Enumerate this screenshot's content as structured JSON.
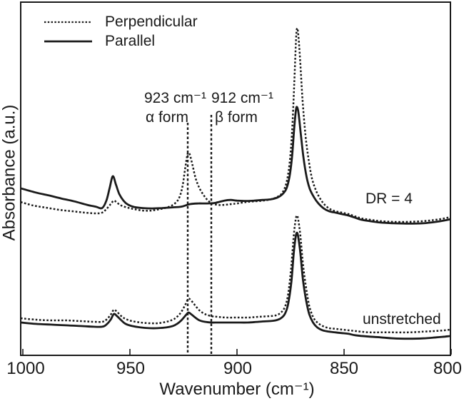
{
  "figure": {
    "background": "#ffffff",
    "line_color": "#1a1a1a"
  },
  "legend": {
    "items": [
      {
        "label": "Perpendicular",
        "style": "dotted"
      },
      {
        "label": "Parallel",
        "style": "solid"
      }
    ]
  },
  "annotations": {
    "alpha_peak_line1": "923 cm⁻¹",
    "alpha_peak_line2": "α form",
    "beta_peak_line1": "912 cm⁻¹",
    "beta_peak_line2": "β form",
    "top_group_label": "DR = 4",
    "bottom_group_label": "unstretched"
  },
  "chart_data": {
    "type": "line",
    "title": "",
    "xlabel": "Wavenumber (cm⁻¹)",
    "ylabel": "Absorbance (a.u.)",
    "xlim": [
      1000,
      800
    ],
    "x_reversed": true,
    "ylim": [
      0,
      1
    ],
    "x_ticks": [
      1000,
      950,
      900,
      850,
      800
    ],
    "grid": false,
    "legend_position": "top-left",
    "vlines": [
      {
        "x": 923,
        "label": "α form",
        "style": "dotted"
      },
      {
        "x": 912,
        "label": "β form",
        "style": "dotted"
      }
    ],
    "series": [
      {
        "name": "DR = 4 — Perpendicular",
        "group": "DR = 4",
        "orientation": "Perpendicular",
        "style": "dotted",
        "points": [
          [
            1001,
            0.434
          ],
          [
            995,
            0.424
          ],
          [
            989,
            0.418
          ],
          [
            983,
            0.412
          ],
          [
            977,
            0.408
          ],
          [
            971,
            0.404
          ],
          [
            966,
            0.402
          ],
          [
            963,
            0.404
          ],
          [
            961,
            0.414
          ],
          [
            959,
            0.428
          ],
          [
            957.5,
            0.438
          ],
          [
            956,
            0.432
          ],
          [
            954,
            0.424
          ],
          [
            951,
            0.418
          ],
          [
            948,
            0.414
          ],
          [
            944,
            0.41
          ],
          [
            940,
            0.41
          ],
          [
            936,
            0.414
          ],
          [
            932,
            0.42
          ],
          [
            929,
            0.43
          ],
          [
            927,
            0.446
          ],
          [
            925.5,
            0.477
          ],
          [
            924.3,
            0.525
          ],
          [
            923.3,
            0.564
          ],
          [
            922.7,
            0.574
          ],
          [
            922,
            0.568
          ],
          [
            920.7,
            0.537
          ],
          [
            919.3,
            0.501
          ],
          [
            917.5,
            0.473
          ],
          [
            915.5,
            0.453
          ],
          [
            913.5,
            0.438
          ],
          [
            911.5,
            0.43
          ],
          [
            909,
            0.426
          ],
          [
            906,
            0.426
          ],
          [
            903,
            0.428
          ],
          [
            900,
            0.43
          ],
          [
            896,
            0.434
          ],
          [
            892,
            0.436
          ],
          [
            888,
            0.438
          ],
          [
            884,
            0.442
          ],
          [
            881,
            0.449
          ],
          [
            879,
            0.459
          ],
          [
            877,
            0.487
          ],
          [
            875.5,
            0.541
          ],
          [
            874.3,
            0.632
          ],
          [
            873.3,
            0.764
          ],
          [
            872.5,
            0.885
          ],
          [
            872,
            0.925
          ],
          [
            871.4,
            0.909
          ],
          [
            870.5,
            0.834
          ],
          [
            869.4,
            0.723
          ],
          [
            868,
            0.622
          ],
          [
            866.5,
            0.552
          ],
          [
            865,
            0.501
          ],
          [
            863,
            0.465
          ],
          [
            861,
            0.442
          ],
          [
            859,
            0.426
          ],
          [
            856.5,
            0.414
          ],
          [
            854,
            0.408
          ],
          [
            851,
            0.404
          ],
          [
            848,
            0.4
          ],
          [
            845,
            0.394
          ],
          [
            842,
            0.388
          ],
          [
            838,
            0.384
          ],
          [
            833,
            0.38
          ],
          [
            827,
            0.378
          ],
          [
            820,
            0.378
          ],
          [
            813,
            0.38
          ],
          [
            807,
            0.384
          ],
          [
            803,
            0.388
          ],
          [
            800,
            0.392
          ]
        ]
      },
      {
        "name": "DR = 4 — Parallel",
        "group": "DR = 4",
        "orientation": "Parallel",
        "style": "solid",
        "points": [
          [
            1001,
            0.473
          ],
          [
            994,
            0.461
          ],
          [
            988,
            0.453
          ],
          [
            982,
            0.444
          ],
          [
            976,
            0.436
          ],
          [
            970,
            0.426
          ],
          [
            966,
            0.421
          ],
          [
            963,
            0.417
          ],
          [
            961,
            0.438
          ],
          [
            959.5,
            0.473
          ],
          [
            958,
            0.507
          ],
          [
            956.5,
            0.483
          ],
          [
            955,
            0.457
          ],
          [
            953,
            0.438
          ],
          [
            951,
            0.427
          ],
          [
            948,
            0.42
          ],
          [
            944,
            0.417
          ],
          [
            940,
            0.416
          ],
          [
            935,
            0.417
          ],
          [
            930,
            0.419
          ],
          [
            926,
            0.421
          ],
          [
            922,
            0.428
          ],
          [
            918,
            0.43
          ],
          [
            914,
            0.43
          ],
          [
            910,
            0.432
          ],
          [
            906,
            0.438
          ],
          [
            903,
            0.44
          ],
          [
            900,
            0.438
          ],
          [
            896,
            0.437
          ],
          [
            892,
            0.438
          ],
          [
            888,
            0.44
          ],
          [
            884,
            0.442
          ],
          [
            881,
            0.447
          ],
          [
            879,
            0.455
          ],
          [
            877,
            0.471
          ],
          [
            875.5,
            0.505
          ],
          [
            874.3,
            0.562
          ],
          [
            873.3,
            0.642
          ],
          [
            872.5,
            0.693
          ],
          [
            872,
            0.703
          ],
          [
            871.3,
            0.687
          ],
          [
            870.3,
            0.632
          ],
          [
            869,
            0.562
          ],
          [
            867.5,
            0.505
          ],
          [
            866,
            0.471
          ],
          [
            864,
            0.447
          ],
          [
            862,
            0.43
          ],
          [
            859.5,
            0.416
          ],
          [
            857,
            0.408
          ],
          [
            854,
            0.404
          ],
          [
            851,
            0.4
          ],
          [
            848,
            0.396
          ],
          [
            845,
            0.39
          ],
          [
            842,
            0.384
          ],
          [
            838,
            0.38
          ],
          [
            833,
            0.376
          ],
          [
            827,
            0.374
          ],
          [
            820,
            0.373
          ],
          [
            813,
            0.374
          ],
          [
            807,
            0.378
          ],
          [
            803,
            0.382
          ],
          [
            800,
            0.386
          ]
        ]
      },
      {
        "name": "unstretched — Perpendicular",
        "group": "unstretched",
        "orientation": "Perpendicular",
        "style": "dotted",
        "points": [
          [
            1001,
            0.105
          ],
          [
            994,
            0.101
          ],
          [
            987,
            0.099
          ],
          [
            980,
            0.099
          ],
          [
            973,
            0.097
          ],
          [
            967,
            0.095
          ],
          [
            963,
            0.095
          ],
          [
            961,
            0.101
          ],
          [
            959,
            0.115
          ],
          [
            957.5,
            0.129
          ],
          [
            956,
            0.123
          ],
          [
            954,
            0.111
          ],
          [
            952,
            0.103
          ],
          [
            949,
            0.097
          ],
          [
            945,
            0.093
          ],
          [
            941,
            0.091
          ],
          [
            937,
            0.091
          ],
          [
            933,
            0.095
          ],
          [
            930,
            0.101
          ],
          [
            928,
            0.109
          ],
          [
            926,
            0.123
          ],
          [
            924,
            0.145
          ],
          [
            922.7,
            0.16
          ],
          [
            921.5,
            0.156
          ],
          [
            919.5,
            0.141
          ],
          [
            917.5,
            0.127
          ],
          [
            915,
            0.117
          ],
          [
            912,
            0.111
          ],
          [
            909,
            0.109
          ],
          [
            905,
            0.107
          ],
          [
            900,
            0.107
          ],
          [
            895,
            0.107
          ],
          [
            890,
            0.109
          ],
          [
            885,
            0.111
          ],
          [
            882,
            0.113
          ],
          [
            879.5,
            0.121
          ],
          [
            877.5,
            0.139
          ],
          [
            876,
            0.178
          ],
          [
            874.6,
            0.255
          ],
          [
            873.5,
            0.339
          ],
          [
            872.6,
            0.384
          ],
          [
            872,
            0.396
          ],
          [
            871.4,
            0.384
          ],
          [
            870.4,
            0.339
          ],
          [
            869.2,
            0.259
          ],
          [
            867.8,
            0.194
          ],
          [
            866.3,
            0.141
          ],
          [
            864.5,
            0.109
          ],
          [
            862.5,
            0.093
          ],
          [
            860,
            0.083
          ],
          [
            857,
            0.077
          ],
          [
            854,
            0.075
          ],
          [
            851,
            0.073
          ],
          [
            848,
            0.071
          ],
          [
            845,
            0.069
          ],
          [
            842,
            0.067
          ],
          [
            838,
            0.065
          ],
          [
            833,
            0.065
          ],
          [
            827,
            0.065
          ],
          [
            820,
            0.065
          ],
          [
            813,
            0.067
          ],
          [
            807,
            0.069
          ],
          [
            803,
            0.071
          ],
          [
            800,
            0.073
          ]
        ]
      },
      {
        "name": "unstretched — Parallel",
        "group": "unstretched",
        "orientation": "Parallel",
        "style": "solid",
        "points": [
          [
            1001,
            0.093
          ],
          [
            994,
            0.089
          ],
          [
            987,
            0.087
          ],
          [
            980,
            0.085
          ],
          [
            973,
            0.083
          ],
          [
            967,
            0.081
          ],
          [
            963,
            0.081
          ],
          [
            961,
            0.087
          ],
          [
            959,
            0.101
          ],
          [
            957.5,
            0.117
          ],
          [
            956,
            0.111
          ],
          [
            954,
            0.099
          ],
          [
            952,
            0.089
          ],
          [
            949,
            0.083
          ],
          [
            945,
            0.079
          ],
          [
            941,
            0.077
          ],
          [
            937,
            0.077
          ],
          [
            933,
            0.079
          ],
          [
            930,
            0.083
          ],
          [
            928,
            0.089
          ],
          [
            926,
            0.099
          ],
          [
            924,
            0.113
          ],
          [
            922.7,
            0.121
          ],
          [
            921.5,
            0.117
          ],
          [
            919.5,
            0.107
          ],
          [
            917.5,
            0.099
          ],
          [
            915,
            0.095
          ],
          [
            912,
            0.093
          ],
          [
            909,
            0.093
          ],
          [
            905,
            0.093
          ],
          [
            900,
            0.093
          ],
          [
            895,
            0.093
          ],
          [
            890,
            0.095
          ],
          [
            885,
            0.097
          ],
          [
            882,
            0.099
          ],
          [
            879.5,
            0.105
          ],
          [
            877.5,
            0.119
          ],
          [
            876,
            0.149
          ],
          [
            874.6,
            0.208
          ],
          [
            873.5,
            0.289
          ],
          [
            872.6,
            0.335
          ],
          [
            872,
            0.347
          ],
          [
            871.4,
            0.335
          ],
          [
            870.4,
            0.289
          ],
          [
            869.2,
            0.214
          ],
          [
            867.8,
            0.158
          ],
          [
            866.3,
            0.117
          ],
          [
            864.5,
            0.093
          ],
          [
            862.5,
            0.079
          ],
          [
            860,
            0.071
          ],
          [
            857,
            0.067
          ],
          [
            854,
            0.065
          ],
          [
            851,
            0.063
          ],
          [
            848,
            0.061
          ],
          [
            845,
            0.057
          ],
          [
            842,
            0.055
          ],
          [
            838,
            0.053
          ],
          [
            833,
            0.051
          ],
          [
            827,
            0.048
          ],
          [
            820,
            0.047
          ],
          [
            813,
            0.048
          ],
          [
            807,
            0.051
          ],
          [
            803,
            0.053
          ],
          [
            800,
            0.055
          ]
        ]
      }
    ]
  }
}
